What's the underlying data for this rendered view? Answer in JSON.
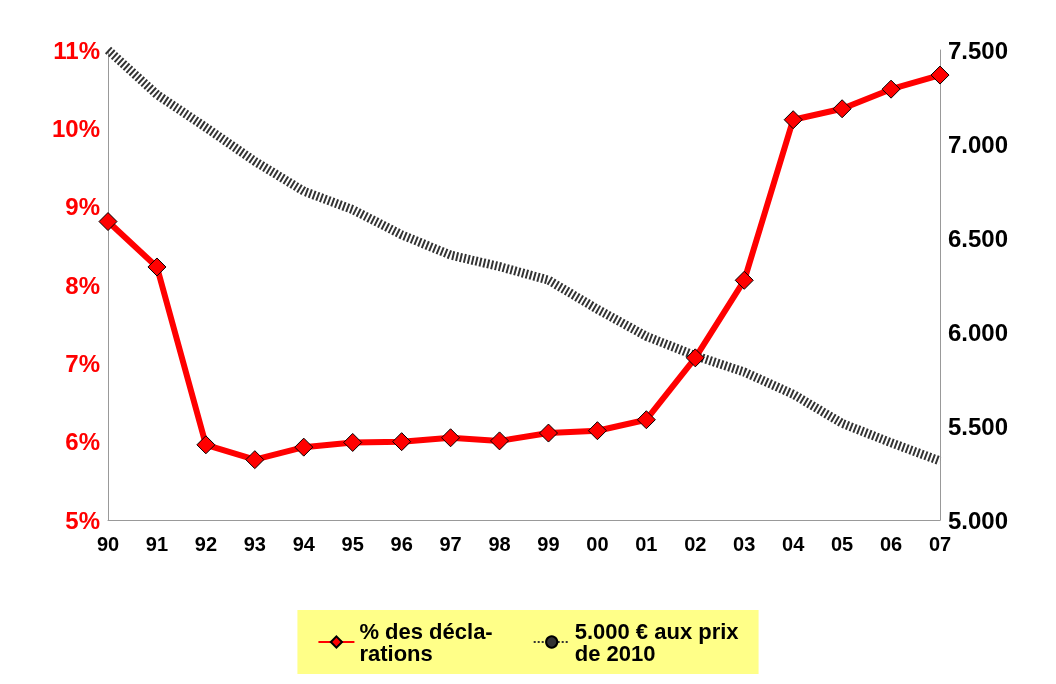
{
  "chart_data": {
    "type": "line",
    "categories": [
      "90",
      "91",
      "92",
      "93",
      "94",
      "95",
      "96",
      "97",
      "98",
      "99",
      "00",
      "01",
      "02",
      "03",
      "04",
      "05",
      "06",
      "07"
    ],
    "series": [
      {
        "name": "% des décla-\nrations",
        "color": "#ff0000",
        "marker": "diamond",
        "line_style": "solid",
        "values": [
          8.81,
          8.23,
          5.96,
          5.77,
          5.93,
          5.99,
          6.0,
          6.05,
          6.01,
          6.11,
          6.14,
          6.28,
          7.07,
          8.06,
          10.11,
          10.25,
          10.5,
          10.68
        ]
      },
      {
        "name": "5.000 € aux prix\nde 2010",
        "color": "#333333",
        "axis": "y2",
        "marker": "none",
        "line_style": "dotted",
        "values": [
          7500,
          7263,
          7088,
          6908,
          6749,
          6651,
          6517,
          6409,
          6348,
          6276,
          6121,
          5977,
          5874,
          5787,
          5669,
          5514,
          5411,
          5314
        ]
      }
    ],
    "ylim": [
      5,
      11
    ],
    "yticks": [
      {
        "value": 5,
        "label": "5%"
      },
      {
        "value": 6,
        "label": "6%"
      },
      {
        "value": 7,
        "label": "7%"
      },
      {
        "value": 8,
        "label": "8%"
      },
      {
        "value": 9,
        "label": "9%"
      },
      {
        "value": 10,
        "label": "10%"
      },
      {
        "value": 11,
        "label": "11%"
      }
    ],
    "y2lim": [
      5000,
      7500
    ],
    "y2ticks": [
      {
        "value": 5000,
        "label": "5.000"
      },
      {
        "value": 5500,
        "label": "5.500"
      },
      {
        "value": 6000,
        "label": "6.000"
      },
      {
        "value": 6500,
        "label": "6.500"
      },
      {
        "value": 7000,
        "label": "7.000"
      },
      {
        "value": 7500,
        "label": "7.500"
      }
    ],
    "grid": false,
    "legend": "bottom"
  }
}
